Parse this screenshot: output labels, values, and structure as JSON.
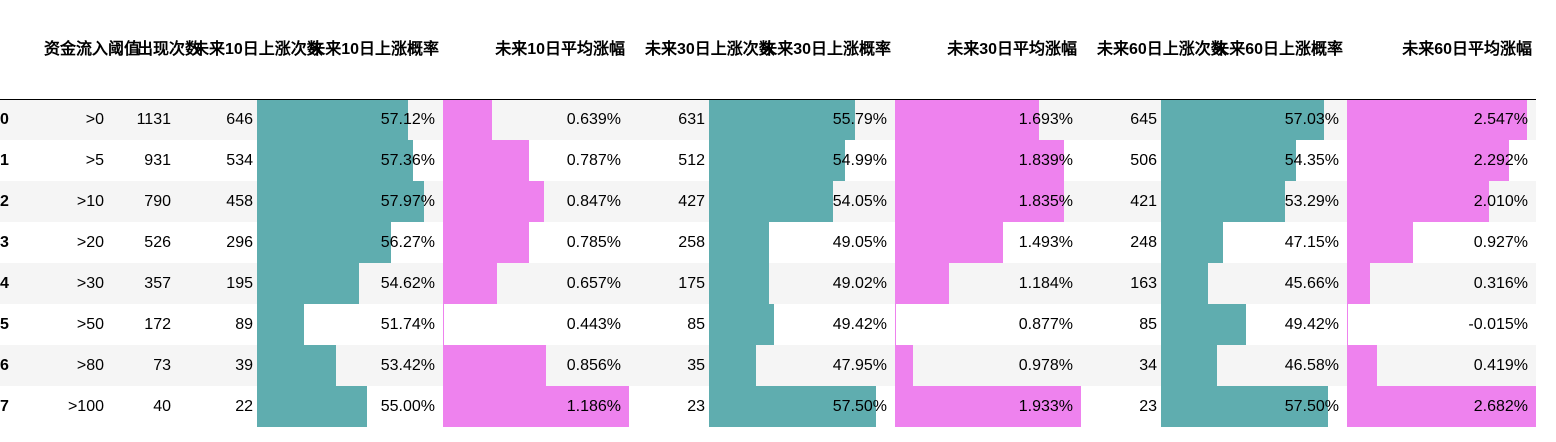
{
  "headers": {
    "index": "",
    "threshold": "资金流入阈值",
    "count": "出现次数",
    "up10_count": "未来10日上涨次数",
    "up10_prob": "未来10日上涨概率",
    "avg10": "未来10日平均涨幅",
    "up30_count": "未来30日上涨次数",
    "up30_prob": "未来30日上涨概率",
    "avg30": "未来30日平均涨幅",
    "up60_count": "未来60日上涨次数",
    "up60_prob": "未来60日上涨概率",
    "avg60": "未来60日平均涨幅"
  },
  "colors": {
    "prob_bar": "#5fadaf",
    "avg_bar": "#ee82ee",
    "stripe": "#f5f5f5"
  },
  "rows": [
    {
      "index": "0",
      "threshold": ">0",
      "count": "1131",
      "up10_count": "646",
      "up10_prob": "57.12%",
      "up10_prob_v": 57.12,
      "avg10": "0.639%",
      "avg10_v": 0.639,
      "up30_count": "631",
      "up30_prob": "55.79%",
      "up30_prob_v": 55.79,
      "avg30": "1.693%",
      "avg30_v": 1.693,
      "up60_count": "645",
      "up60_prob": "57.03%",
      "up60_prob_v": 57.03,
      "avg60": "2.547%",
      "avg60_v": 2.547
    },
    {
      "index": "1",
      "threshold": ">5",
      "count": "931",
      "up10_count": "534",
      "up10_prob": "57.36%",
      "up10_prob_v": 57.36,
      "avg10": "0.787%",
      "avg10_v": 0.787,
      "up30_count": "512",
      "up30_prob": "54.99%",
      "up30_prob_v": 54.99,
      "avg30": "1.839%",
      "avg30_v": 1.839,
      "up60_count": "506",
      "up60_prob": "54.35%",
      "up60_prob_v": 54.35,
      "avg60": "2.292%",
      "avg60_v": 2.292
    },
    {
      "index": "2",
      "threshold": ">10",
      "count": "790",
      "up10_count": "458",
      "up10_prob": "57.97%",
      "up10_prob_v": 57.97,
      "avg10": "0.847%",
      "avg10_v": 0.847,
      "up30_count": "427",
      "up30_prob": "54.05%",
      "up30_prob_v": 54.05,
      "avg30": "1.835%",
      "avg30_v": 1.835,
      "up60_count": "421",
      "up60_prob": "53.29%",
      "up60_prob_v": 53.29,
      "avg60": "2.010%",
      "avg60_v": 2.01
    },
    {
      "index": "3",
      "threshold": ">20",
      "count": "526",
      "up10_count": "296",
      "up10_prob": "56.27%",
      "up10_prob_v": 56.27,
      "avg10": "0.785%",
      "avg10_v": 0.785,
      "up30_count": "258",
      "up30_prob": "49.05%",
      "up30_prob_v": 49.05,
      "avg30": "1.493%",
      "avg30_v": 1.493,
      "up60_count": "248",
      "up60_prob": "47.15%",
      "up60_prob_v": 47.15,
      "avg60": "0.927%",
      "avg60_v": 0.927
    },
    {
      "index": "4",
      "threshold": ">30",
      "count": "357",
      "up10_count": "195",
      "up10_prob": "54.62%",
      "up10_prob_v": 54.62,
      "avg10": "0.657%",
      "avg10_v": 0.657,
      "up30_count": "175",
      "up30_prob": "49.02%",
      "up30_prob_v": 49.02,
      "avg30": "1.184%",
      "avg30_v": 1.184,
      "up60_count": "163",
      "up60_prob": "45.66%",
      "up60_prob_v": 45.66,
      "avg60": "0.316%",
      "avg60_v": 0.316
    },
    {
      "index": "5",
      "threshold": ">50",
      "count": "172",
      "up10_count": "89",
      "up10_prob": "51.74%",
      "up10_prob_v": 51.74,
      "avg10": "0.443%",
      "avg10_v": 0.443,
      "up30_count": "85",
      "up30_prob": "49.42%",
      "up30_prob_v": 49.42,
      "avg30": "0.877%",
      "avg30_v": 0.877,
      "up60_count": "85",
      "up60_prob": "49.42%",
      "up60_prob_v": 49.42,
      "avg60": "-0.015%",
      "avg60_v": -0.015
    },
    {
      "index": "6",
      "threshold": ">80",
      "count": "73",
      "up10_count": "39",
      "up10_prob": "53.42%",
      "up10_prob_v": 53.42,
      "avg10": "0.856%",
      "avg10_v": 0.856,
      "up30_count": "35",
      "up30_prob": "47.95%",
      "up30_prob_v": 47.95,
      "avg30": "0.978%",
      "avg30_v": 0.978,
      "up60_count": "34",
      "up60_prob": "46.58%",
      "up60_prob_v": 46.58,
      "avg60": "0.419%",
      "avg60_v": 0.419
    },
    {
      "index": "7",
      "threshold": ">100",
      "count": "40",
      "up10_count": "22",
      "up10_prob": "55.00%",
      "up10_prob_v": 55.0,
      "avg10": "1.186%",
      "avg10_v": 1.186,
      "up30_count": "23",
      "up30_prob": "57.50%",
      "up30_prob_v": 57.5,
      "avg30": "1.933%",
      "avg30_v": 1.933,
      "up60_count": "23",
      "up60_prob": "57.50%",
      "up60_prob_v": 57.5,
      "avg60": "2.682%",
      "avg60_v": 2.682
    }
  ]
}
